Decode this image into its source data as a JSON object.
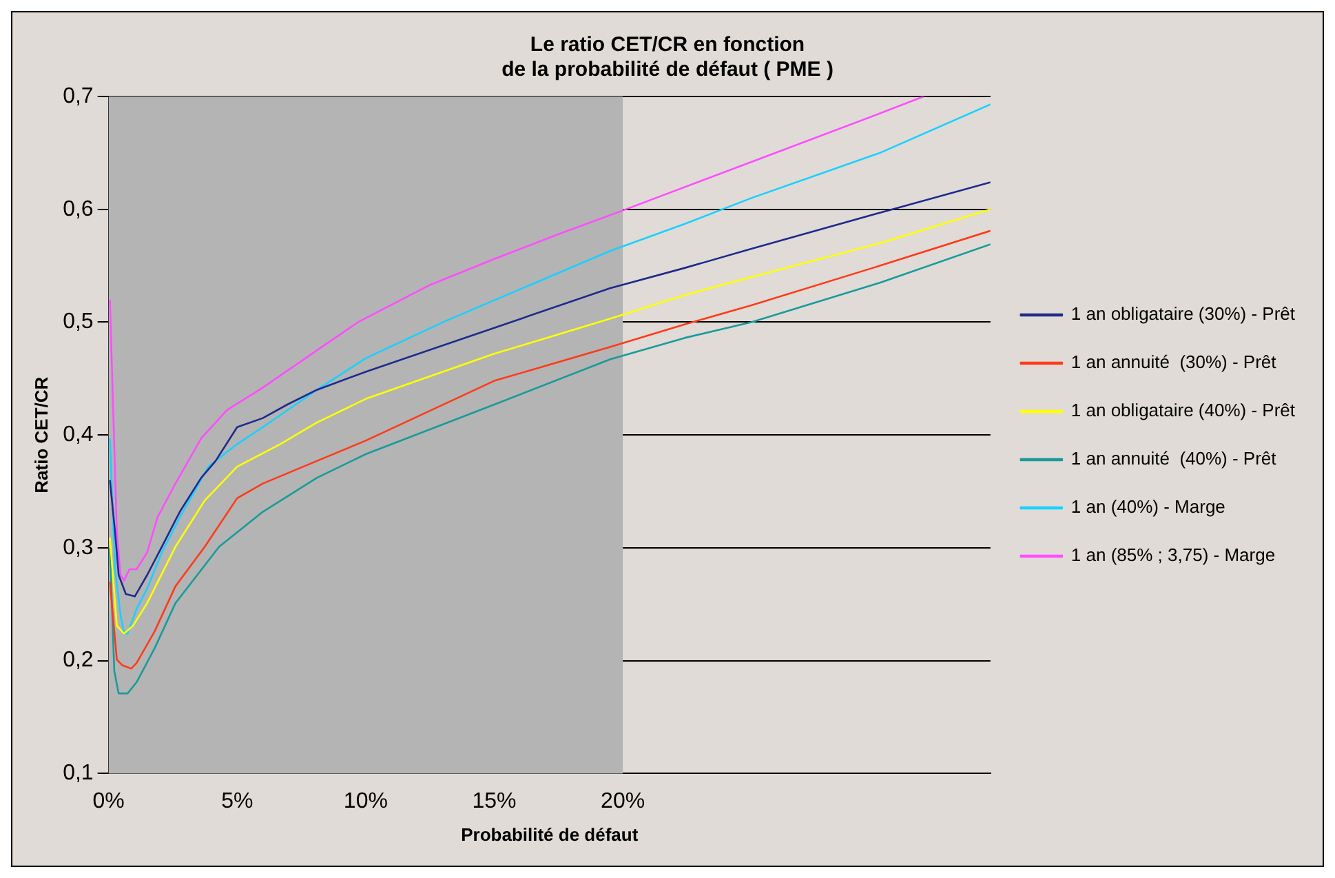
{
  "chart_data": {
    "type": "line",
    "title": "Le ratio CET/CR en fonction\nde la probabilité de défaut ( PME )",
    "xlabel": "Probabilité de défaut",
    "ylabel": "Ratio CET/CR",
    "xlim": [
      0,
      0.343
    ],
    "ylim": [
      0.1,
      0.7
    ],
    "xticks": [
      {
        "value": 0,
        "label": "0%"
      },
      {
        "value": 0.05,
        "label": "5%"
      },
      {
        "value": 0.1,
        "label": "10%"
      },
      {
        "value": 0.15,
        "label": "15%"
      },
      {
        "value": 0.2,
        "label": "20%"
      }
    ],
    "yticks": [
      {
        "value": 0.1,
        "label": "0,1"
      },
      {
        "value": 0.2,
        "label": "0,2"
      },
      {
        "value": 0.3,
        "label": "0,3"
      },
      {
        "value": 0.4,
        "label": "0,4"
      },
      {
        "value": 0.5,
        "label": "0,5"
      },
      {
        "value": 0.6,
        "label": "0,6"
      },
      {
        "value": 0.7,
        "label": "0,7"
      }
    ],
    "grid": "y",
    "legend": "right",
    "bands": [
      {
        "axis": "x",
        "from": 0,
        "to": 0.2,
        "color": "#b4b4b4"
      }
    ],
    "marker": "none",
    "line_style": "solid",
    "series": [
      {
        "name": "1 an obligataire (30%) - Prêt",
        "color": "#1f2a8c",
        "x": [
          0.0005,
          0.0025,
          0.0039,
          0.0067,
          0.0102,
          0.015,
          0.0207,
          0.0277,
          0.036,
          0.0416,
          0.05,
          0.06,
          0.0695,
          0.081,
          0.1,
          0.15,
          0.195,
          0.224,
          0.25,
          0.3,
          0.343
        ],
        "values": [
          0.36,
          0.314,
          0.276,
          0.259,
          0.257,
          0.276,
          0.301,
          0.332,
          0.362,
          0.377,
          0.407,
          0.415,
          0.427,
          0.44,
          0.456,
          0.495,
          0.53,
          0.548,
          0.565,
          0.597,
          0.624
        ]
      },
      {
        "name": "1 an annuité  (30%) - Prêt",
        "color": "#ff3a1a",
        "x": [
          0.0005,
          0.0032,
          0.0053,
          0.0088,
          0.0109,
          0.0179,
          0.026,
          0.0374,
          0.05,
          0.06,
          0.081,
          0.1,
          0.15,
          0.195,
          0.224,
          0.25,
          0.3,
          0.343
        ],
        "values": [
          0.27,
          0.201,
          0.196,
          0.193,
          0.198,
          0.226,
          0.266,
          0.301,
          0.344,
          0.357,
          0.377,
          0.395,
          0.448,
          0.478,
          0.498,
          0.515,
          0.55,
          0.581
        ]
      },
      {
        "name": "1 an obligataire (40%) - Prêt",
        "color": "#ffff00",
        "x": [
          0.0005,
          0.0032,
          0.006,
          0.0095,
          0.015,
          0.026,
          0.0374,
          0.05,
          0.0668,
          0.081,
          0.1,
          0.15,
          0.195,
          0.224,
          0.25,
          0.3,
          0.343
        ],
        "values": [
          0.309,
          0.231,
          0.224,
          0.231,
          0.251,
          0.301,
          0.342,
          0.372,
          0.392,
          0.411,
          0.432,
          0.472,
          0.503,
          0.524,
          0.54,
          0.57,
          0.6
        ]
      },
      {
        "name": "1 an annuité  (40%) - Prêt",
        "color": "#1a9a9a",
        "x": [
          0.0005,
          0.0022,
          0.0039,
          0.0074,
          0.0109,
          0.0179,
          0.026,
          0.043,
          0.06,
          0.081,
          0.1,
          0.15,
          0.195,
          0.224,
          0.25,
          0.3,
          0.343
        ],
        "values": [
          0.3,
          0.191,
          0.171,
          0.171,
          0.181,
          0.211,
          0.251,
          0.301,
          0.332,
          0.362,
          0.383,
          0.427,
          0.467,
          0.486,
          0.5,
          0.535,
          0.569
        ]
      },
      {
        "name": "1 an (40%) - Marge",
        "color": "#1ad0ff",
        "x": [
          0.0005,
          0.0025,
          0.0046,
          0.006,
          0.0074,
          0.0109,
          0.015,
          0.0207,
          0.0277,
          0.0388,
          0.05,
          0.06,
          0.081,
          0.1,
          0.131,
          0.195,
          0.224,
          0.25,
          0.3,
          0.343
        ],
        "values": [
          0.397,
          0.281,
          0.241,
          0.224,
          0.224,
          0.246,
          0.264,
          0.296,
          0.327,
          0.372,
          0.392,
          0.407,
          0.44,
          0.468,
          0.501,
          0.563,
          0.587,
          0.61,
          0.65,
          0.693
        ]
      },
      {
        "name": "1 an (85% ; 3,75) - Marge",
        "color": "#ff4dff",
        "x": [
          0.0005,
          0.0032,
          0.0046,
          0.006,
          0.0081,
          0.0109,
          0.015,
          0.019,
          0.026,
          0.036,
          0.046,
          0.06,
          0.081,
          0.097,
          0.125,
          0.15,
          0.175,
          0.2,
          0.25,
          0.3,
          0.317
        ],
        "values": [
          0.52,
          0.314,
          0.276,
          0.271,
          0.281,
          0.281,
          0.296,
          0.327,
          0.357,
          0.397,
          0.422,
          0.442,
          0.475,
          0.5,
          0.533,
          0.556,
          0.578,
          0.599,
          0.642,
          0.685,
          0.7
        ]
      }
    ]
  }
}
